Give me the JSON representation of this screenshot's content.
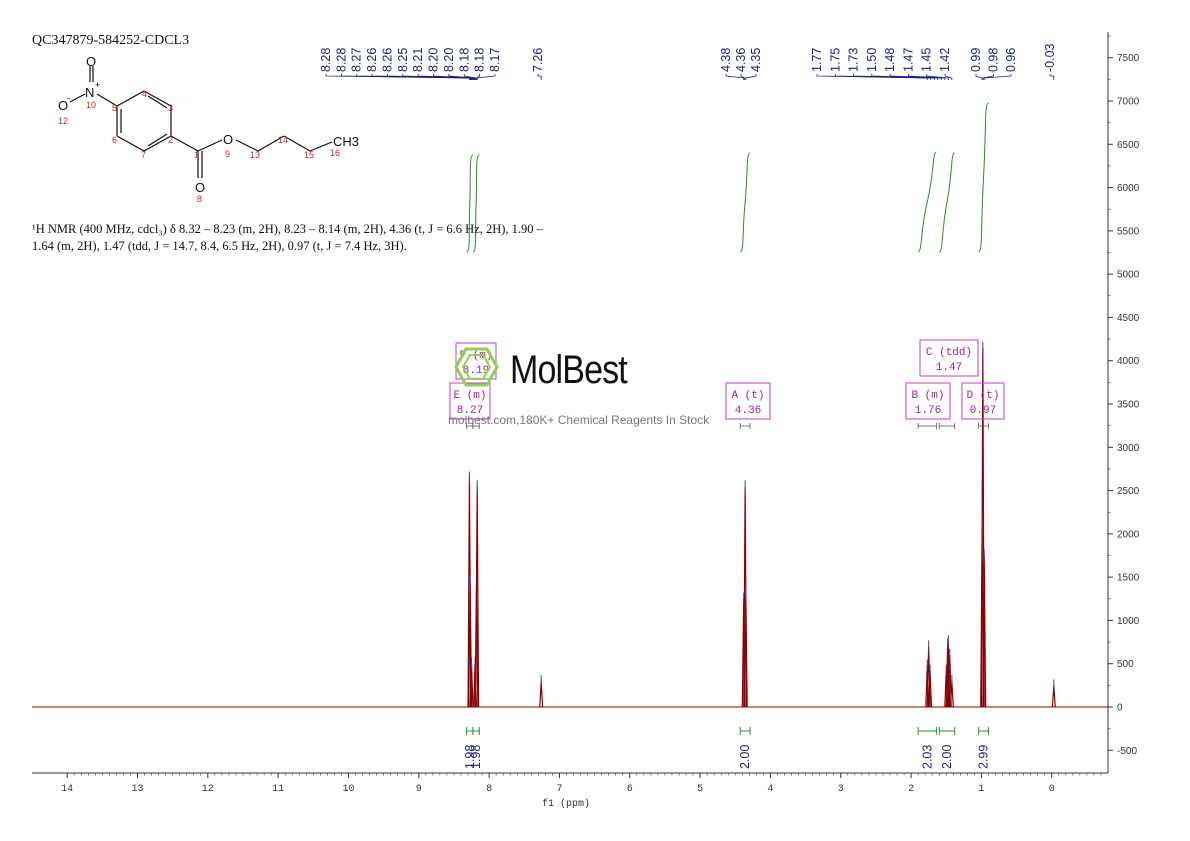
{
  "header": {
    "sample_id": "QC347879-584252-CDCL3"
  },
  "description": {
    "line1": "¹H NMR (400 MHz, cdcl₃) δ 8.32 – 8.23 (m, 2H), 8.23 – 8.14 (m, 2H), 4.36 (t, J = 6.6 Hz, 2H), 1.90 –",
    "line2": "1.64 (m, 2H), 1.47 (tdd, J = 14.7, 8.4, 6.5 Hz, 2H), 0.97 (t, J = 7.4 Hz, 3H)."
  },
  "watermark": {
    "brand": "MolBest",
    "tagline": "molbest.com,180K+ Chemical Reagents In Stock"
  },
  "structure": {
    "atoms": [
      "O",
      "N",
      "+",
      "O",
      "-",
      "O",
      "O",
      "CH3"
    ],
    "numbers": [
      "10",
      "12",
      "5",
      "4",
      "3",
      "6",
      "7",
      "2",
      "1",
      "8",
      "9",
      "13",
      "14",
      "15",
      "16"
    ]
  },
  "chart_data": {
    "type": "line",
    "xlabel": "f1 (ppm)",
    "ylabel": "",
    "xlim": [
      14.5,
      -0.8
    ],
    "ylim": [
      -750,
      7750
    ],
    "x_ticks": [
      14,
      13,
      12,
      11,
      10,
      9,
      8,
      7,
      6,
      5,
      4,
      3,
      2,
      1,
      0
    ],
    "y_ticks": [
      -500,
      0,
      500,
      1000,
      1500,
      2000,
      2500,
      3000,
      3500,
      4000,
      4500,
      5000,
      5500,
      6000,
      6500,
      7000,
      7500
    ],
    "peaks": [
      {
        "ppm": 8.28,
        "height": 2650
      },
      {
        "ppm": 8.27,
        "height": 1450
      },
      {
        "ppm": 8.25,
        "height": 500
      },
      {
        "ppm": 8.2,
        "height": 500
      },
      {
        "ppm": 8.18,
        "height": 1400
      },
      {
        "ppm": 8.17,
        "height": 2550
      },
      {
        "ppm": 7.26,
        "height": 300
      },
      {
        "ppm": 4.38,
        "height": 1250
      },
      {
        "ppm": 4.36,
        "height": 2550
      },
      {
        "ppm": 4.35,
        "height": 1300
      },
      {
        "ppm": 1.77,
        "height": 480
      },
      {
        "ppm": 1.75,
        "height": 700
      },
      {
        "ppm": 1.73,
        "height": 420
      },
      {
        "ppm": 1.5,
        "height": 420
      },
      {
        "ppm": 1.48,
        "height": 720
      },
      {
        "ppm": 1.47,
        "height": 760
      },
      {
        "ppm": 1.45,
        "height": 600
      },
      {
        "ppm": 1.42,
        "height": 300
      },
      {
        "ppm": 0.99,
        "height": 2000
      },
      {
        "ppm": 0.98,
        "height": 4150
      },
      {
        "ppm": 0.96,
        "height": 1750
      },
      {
        "ppm": -0.03,
        "height": 250
      }
    ],
    "peak_labels": [
      {
        "group": "aromatic",
        "labels": [
          "8.28",
          "8.28",
          "8.27",
          "8.26",
          "8.26",
          "8.25",
          "8.21",
          "8.20",
          "8.20",
          "8.18",
          "8.18",
          "8.17"
        ],
        "from": 8.28,
        "to": 8.17
      },
      {
        "group": "solvent",
        "labels": [
          "7.26"
        ],
        "from": 7.26,
        "to": 7.26
      },
      {
        "group": "och2",
        "labels": [
          "4.38",
          "4.36",
          "4.35"
        ],
        "from": 4.38,
        "to": 4.35
      },
      {
        "group": "ch2",
        "labels": [
          "1.77",
          "1.75",
          "1.73",
          "1.50",
          "1.48",
          "1.47",
          "1.45",
          "1.42"
        ],
        "from": 1.77,
        "to": 1.42
      },
      {
        "group": "ch3",
        "labels": [
          "0.99",
          "0.98",
          "0.96"
        ],
        "from": 0.99,
        "to": 0.96
      },
      {
        "group": "tms",
        "labels": [
          "-0.03"
        ],
        "from": -0.03,
        "to": -0.03
      }
    ],
    "integrals": [
      {
        "from": 8.32,
        "to": 8.23,
        "value": "1.98"
      },
      {
        "from": 8.23,
        "to": 8.14,
        "value": "1.98"
      },
      {
        "from": 4.43,
        "to": 4.29,
        "value": "2.00"
      },
      {
        "from": 1.9,
        "to": 1.64,
        "value": "2.03"
      },
      {
        "from": 1.6,
        "to": 1.38,
        "value": "2.00"
      },
      {
        "from": 1.04,
        "to": 0.9,
        "value": "2.99"
      }
    ],
    "multiplets": [
      {
        "letter": "F",
        "type": "(m)",
        "shift": "8.19",
        "center": 8.19,
        "from": 8.23,
        "to": 8.14
      },
      {
        "letter": "E",
        "type": "(m)",
        "shift": "8.27",
        "center": 8.27,
        "from": 8.32,
        "to": 8.23
      },
      {
        "letter": "A",
        "type": "(t)",
        "shift": "4.36",
        "center": 4.36,
        "from": 4.43,
        "to": 4.29
      },
      {
        "letter": "C",
        "type": "(tdd)",
        "shift": "1.47",
        "center": 1.47,
        "from": 1.6,
        "to": 1.38
      },
      {
        "letter": "B",
        "type": "(m)",
        "shift": "1.76",
        "center": 1.76,
        "from": 1.9,
        "to": 1.64
      },
      {
        "letter": "D",
        "type": "(t)",
        "shift": "0.97",
        "center": 0.97,
        "from": 1.04,
        "to": 0.9
      }
    ],
    "colors": {
      "spectrum": "#8b0000",
      "integral": "#2e8b2e",
      "peak_label": "#1a237e",
      "multiplet_box": "#c040c0",
      "axis": "#333333"
    }
  }
}
